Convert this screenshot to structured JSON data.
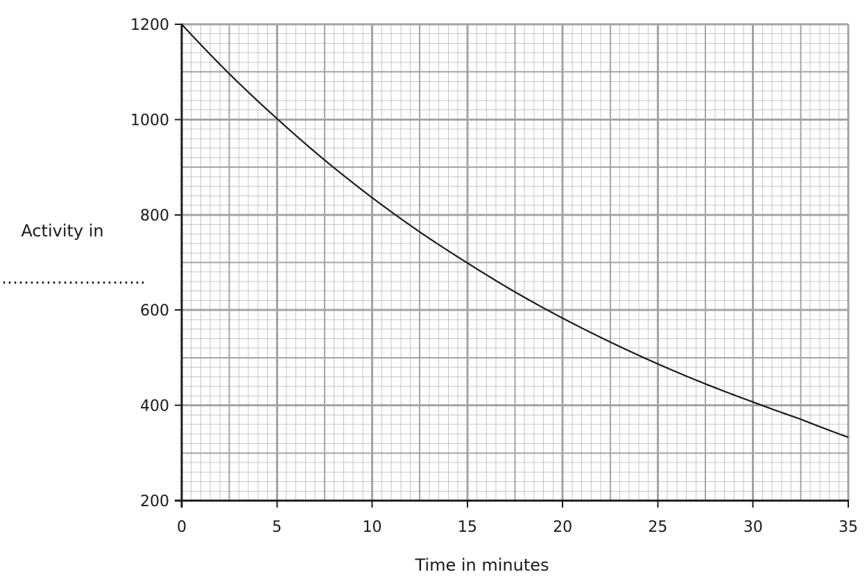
{
  "chart_data": {
    "type": "line",
    "title": "",
    "xlabel": "Time in minutes",
    "ylabel": "Activity in",
    "ylabel_blank": "…………………………",
    "xlim": [
      0,
      35
    ],
    "ylim": [
      200,
      1200
    ],
    "x_ticks": [
      "0",
      "5",
      "10",
      "15",
      "20",
      "25",
      "30",
      "35"
    ],
    "y_ticks": [
      "200",
      "400",
      "600",
      "800",
      "1000",
      "1200"
    ],
    "grid": true,
    "grid_minor_x_step": 0.5,
    "grid_minor_y_step": 20,
    "grid_medium_x_step": 2.5,
    "grid_medium_y_step": 100,
    "grid_major_x_step": 5,
    "grid_major_y_step": 200,
    "colors": {
      "minor_grid": "#c4c4c4",
      "major_grid": "#a3a3a3",
      "axis": "#1a1a1a",
      "curve": "#1a1a1a"
    },
    "series": [
      {
        "x": [
          0,
          2.5,
          5,
          7.5,
          10,
          12.5,
          15,
          17.5,
          20,
          22.5,
          25,
          27.5,
          30,
          32.5,
          35
        ],
        "values": [
          1200,
          1096,
          1002,
          915,
          836,
          764,
          699,
          638,
          583,
          533,
          487,
          445,
          407,
          371,
          333
        ]
      }
    ]
  }
}
